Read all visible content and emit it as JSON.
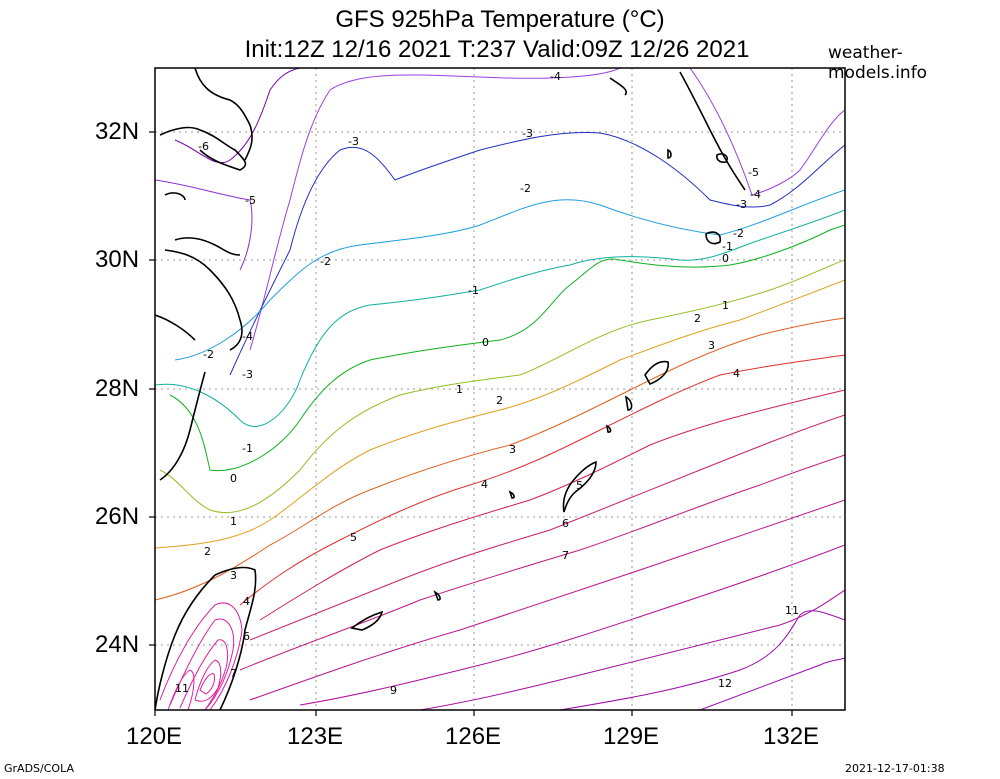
{
  "header": {
    "title_line1": "GFS 925hPa Temperature (°C)",
    "title_line2": "Init:12Z 12/16 2021 T:237 Valid:09Z 12/26 2021",
    "site": "weather-models.info"
  },
  "footer": {
    "left": "GrADS/COLA",
    "right": "2021-12-17-01:38"
  },
  "axes": {
    "lon_ticks": [
      "120E",
      "123E",
      "126E",
      "129E",
      "132E"
    ],
    "lat_ticks": [
      "32N",
      "30N",
      "28N",
      "26N",
      "24N"
    ]
  },
  "contour_labels": [
    "-6",
    "-5",
    "-4",
    "-3",
    "-2",
    "-1",
    "0",
    "1",
    "2",
    "3",
    "4",
    "5",
    "6",
    "7",
    "9",
    "11",
    "12"
  ]
}
